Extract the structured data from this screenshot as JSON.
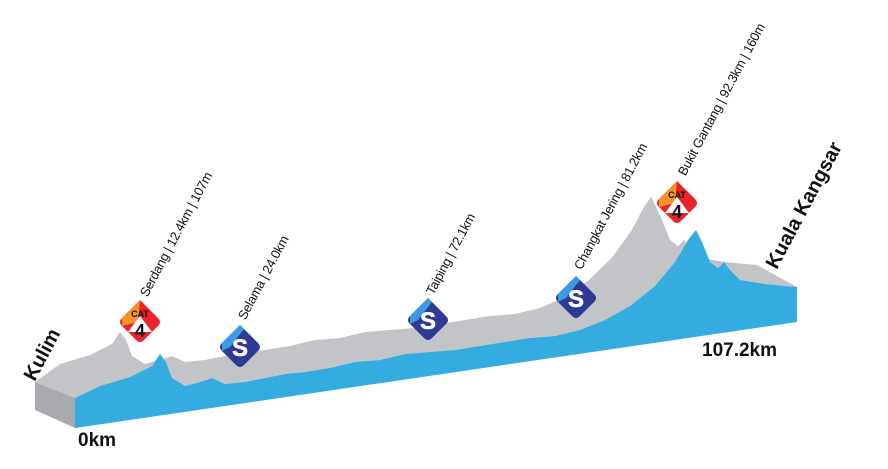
{
  "start": {
    "town": "Kulim",
    "distance": "0km"
  },
  "finish": {
    "town": "Kuala Kangsar",
    "distance": "107.2km"
  },
  "points": [
    {
      "type": "climb",
      "badge_top": "CAT",
      "badge_num": "4",
      "label": "Serdang | 12.4km | 107m"
    },
    {
      "type": "sprint",
      "badge": "S",
      "label": "Selama | 24.0km"
    },
    {
      "type": "sprint",
      "badge": "S",
      "label": "Taiping | 72.1km"
    },
    {
      "type": "sprint",
      "badge": "S",
      "label": "Changkat Jering | 81.2km"
    },
    {
      "type": "climb",
      "badge_top": "CAT",
      "badge_num": "4",
      "label": "Bukit Gantang | 92.3km | 160m"
    }
  ],
  "colors": {
    "profile": "#35ace0",
    "terrain": "#c3c4c7",
    "sprint": "#2e3a94",
    "sprint_light": "#3b9be0",
    "climb_red": "#e8242c",
    "climb_orange": "#f7922a"
  }
}
